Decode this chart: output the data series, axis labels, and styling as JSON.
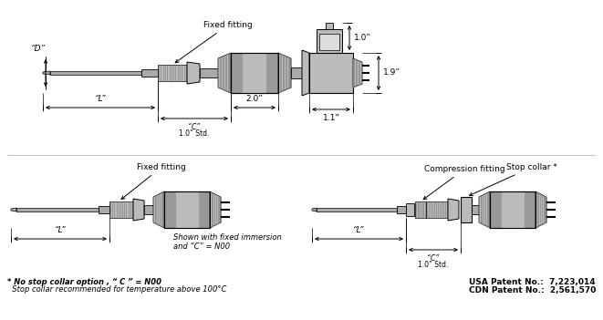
{
  "bg_color": "#ffffff",
  "lc": "#000000",
  "gd": "#444444",
  "gm": "#888888",
  "gl": "#aaaaaa",
  "gf": "#bbbbbb",
  "gb": "#999999",
  "gb2": "#777777",
  "footer_note1": "* No stop collar option , “ C ” = N00",
  "footer_note2": "  Stop collar recommended for temperature above 100°C",
  "patent1": "USA Patent No.:  7,223,014",
  "patent2": "CDN Patent No.:  2,561,570",
  "dim_D": "“D”",
  "dim_L": "“L”",
  "dim_C": "“C”",
  "dim_10std": "1.0” Std.",
  "dim_20": "2.0”",
  "dim_10top": "1.0”",
  "dim_19": "1.9”",
  "dim_11": "1.1”",
  "label_fixed_fitting": "Fixed fitting",
  "label_compression_fitting": "Compression fitting",
  "label_stop_collar": "Stop collar *",
  "label_shown": "Shown with fixed immersion\nand “C” = N00"
}
